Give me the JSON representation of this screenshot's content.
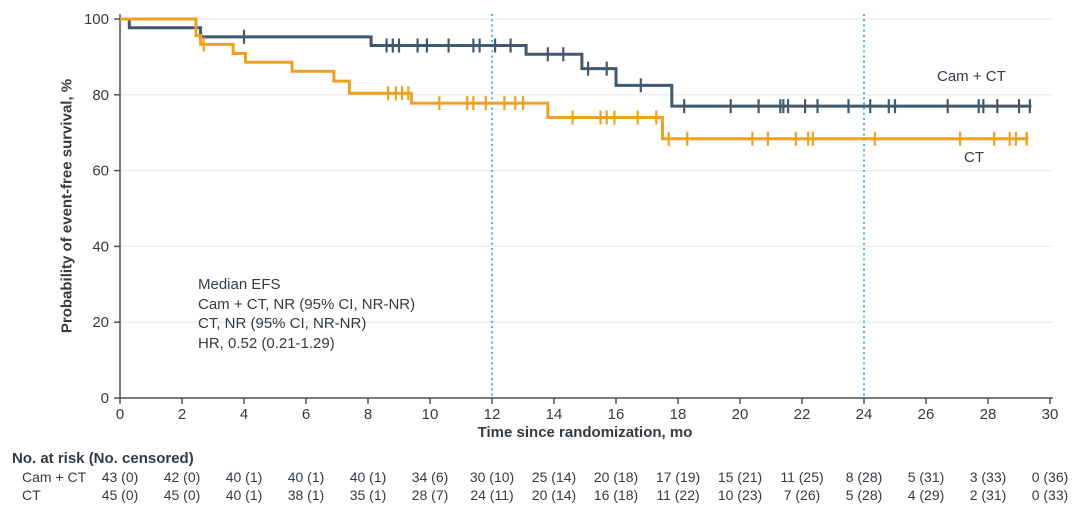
{
  "chart_data": {
    "type": "line",
    "subtype": "kaplan-meier-step",
    "title": "",
    "xlabel": "Time since randomization, mo",
    "ylabel": "Probability of event-free survival, %",
    "xlim": [
      0,
      30
    ],
    "ylim": [
      0,
      100
    ],
    "xticks": [
      0,
      2,
      4,
      6,
      8,
      10,
      12,
      14,
      16,
      18,
      20,
      22,
      24,
      26,
      28,
      30
    ],
    "yticks": [
      0,
      20,
      40,
      60,
      80,
      100
    ],
    "grid": "horizontal",
    "legend_position": "labels-on-chart",
    "reference_lines_x": [
      12,
      24
    ],
    "colors": {
      "grid": "#ececec",
      "axis": "#4b5258",
      "text": "#343b41",
      "reference_line": "#45b6e6",
      "cam_ct": "#41586d",
      "ct": "#f0a11e"
    },
    "series": [
      {
        "name": "Cam + CT",
        "color": "#41586d",
        "steps": [
          [
            0,
            100
          ],
          [
            0.3,
            97.7
          ],
          [
            2.6,
            95.3
          ],
          [
            8.1,
            93
          ],
          [
            13.1,
            90.7
          ],
          [
            14.9,
            86.9
          ],
          [
            16,
            82.5
          ],
          [
            17.8,
            77
          ],
          [
            29.4,
            77
          ]
        ],
        "censor_marks": [
          4,
          8.6,
          8.8,
          9,
          9.6,
          9.9,
          10.6,
          11.4,
          11.6,
          12.1,
          12.6,
          13.8,
          14.3,
          15.1,
          15.7,
          16.8,
          18.2,
          19.7,
          20.6,
          21.3,
          21.4,
          21.55,
          22.1,
          22.5,
          23.5,
          24.2,
          24.8,
          25,
          26.7,
          27.7,
          27.85,
          28.3,
          29,
          29.35
        ]
      },
      {
        "name": "CT",
        "color": "#f0a11e",
        "steps": [
          [
            0,
            100
          ],
          [
            2.45,
            95.6
          ],
          [
            2.6,
            93.3
          ],
          [
            3.65,
            90.9
          ],
          [
            4.05,
            88.6
          ],
          [
            5.55,
            86.2
          ],
          [
            6.9,
            83.6
          ],
          [
            7.4,
            80.4
          ],
          [
            9.4,
            77.8
          ],
          [
            13.8,
            74
          ],
          [
            17.5,
            68.4
          ],
          [
            29.3,
            68.4
          ]
        ],
        "censor_marks": [
          2.7,
          8.65,
          8.9,
          9.1,
          9.3,
          10.3,
          11.2,
          11.4,
          11.8,
          12.4,
          12.75,
          13,
          14.6,
          15.5,
          15.7,
          15.95,
          16.7,
          17.3,
          17.7,
          18.3,
          20.4,
          20.9,
          21.8,
          22.2,
          22.35,
          24.35,
          27.1,
          28.2,
          28.7,
          28.9,
          29.25
        ]
      }
    ],
    "annotation": {
      "lines": [
        "Median EFS",
        "Cam + CT, NR (95% CI, NR-NR)",
        "CT, NR (95% CI, NR-NR)",
        "HR, 0.52 (0.21-1.29)"
      ]
    }
  },
  "risk_table": {
    "header": "No. at risk (No. censored)",
    "time_points": [
      0,
      2,
      4,
      6,
      8,
      10,
      12,
      14,
      16,
      18,
      20,
      22,
      24,
      26,
      28,
      30
    ],
    "rows": [
      {
        "label": "Cam + CT",
        "values": [
          "43 (0)",
          "42 (0)",
          "40 (1)",
          "40 (1)",
          "40 (1)",
          "34 (6)",
          "30 (10)",
          "25 (14)",
          "20 (18)",
          "17 (19)",
          "15 (21)",
          "11 (25)",
          "8 (28)",
          "5 (31)",
          "3 (33)",
          "0 (36)"
        ]
      },
      {
        "label": "CT",
        "values": [
          "45 (0)",
          "45 (0)",
          "40 (1)",
          "38 (1)",
          "35 (1)",
          "28 (7)",
          "24 (11)",
          "20 (14)",
          "16 (18)",
          "11 (22)",
          "10 (23)",
          "7 (26)",
          "5 (28)",
          "4 (29)",
          "2 (31)",
          "0 (33)"
        ]
      }
    ]
  }
}
